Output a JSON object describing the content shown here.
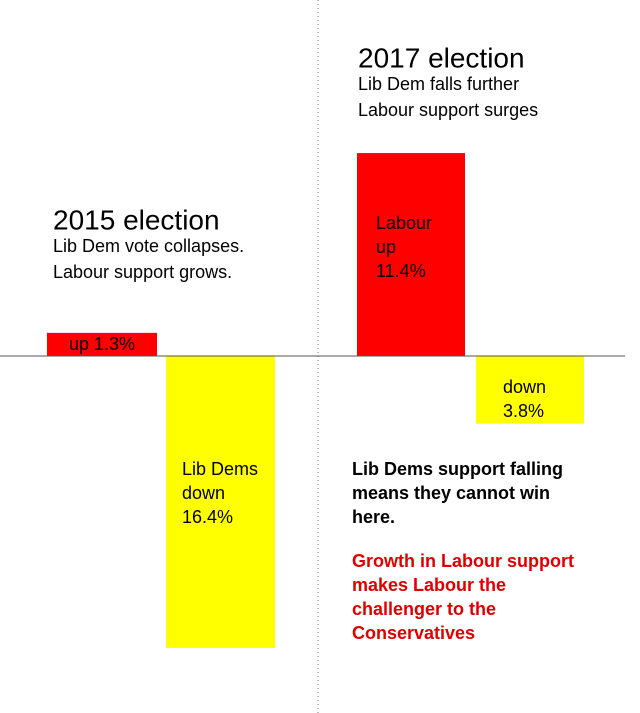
{
  "chart_data": [
    {
      "type": "bar",
      "title": "2015 election",
      "subtitle": [
        "Lib Dem vote collapses.",
        "Labour support grows."
      ],
      "values": [
        1.3,
        -16.4
      ],
      "value_labels": [
        [
          "up 1.3%"
        ],
        [
          "Lib Dems",
          "down",
          "16.4%"
        ]
      ],
      "colors": [
        "#ff0000",
        "#ffff00"
      ]
    },
    {
      "type": "bar",
      "title": "2017 election",
      "subtitle": [
        "Lib Dem falls further",
        "Labour support surges"
      ],
      "values": [
        11.4,
        -3.8
      ],
      "value_labels": [
        [
          "Labour",
          "up",
          "11.4%"
        ],
        [
          "down",
          "3.8%"
        ]
      ],
      "colors": [
        "#ff0000",
        "#ffff00"
      ],
      "annotations": [
        {
          "lines": [
            "Lib Dems support falling",
            "means they cannot win",
            "here."
          ],
          "color": "#000000"
        },
        {
          "lines": [
            "Growth in Labour support",
            "makes Labour the",
            "challenger to the",
            "Conservatives"
          ],
          "color": "#e00000"
        }
      ]
    }
  ]
}
